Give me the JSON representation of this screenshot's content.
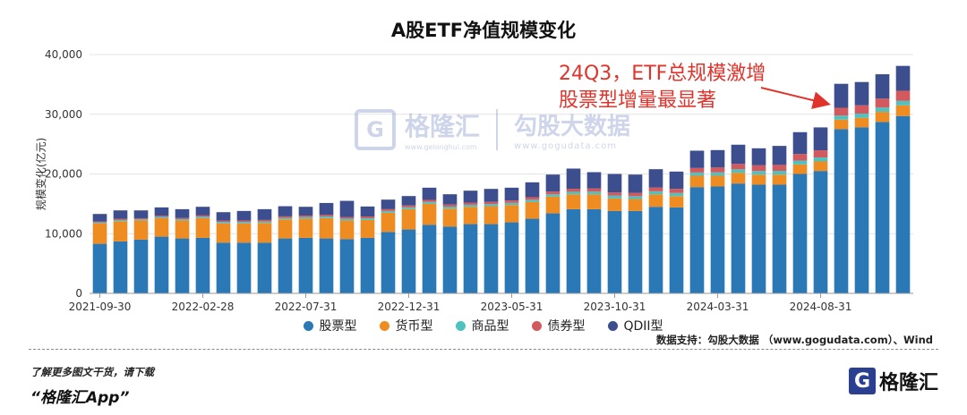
{
  "title": "A股ETF净值规模变化",
  "chart_data": {
    "type": "bar",
    "stacked": true,
    "title": "A股ETF净值规模变化",
    "ylabel": "规模变化(亿元)",
    "xlabel": "",
    "ylim": [
      0,
      40000
    ],
    "yticks": [
      "0",
      "10,000",
      "20,000",
      "30,000",
      "40,000"
    ],
    "grid": true,
    "legend_position": "bottom",
    "x_tick_labels": [
      "2021-09-30",
      "2022-02-28",
      "2022-07-31",
      "2022-12-31",
      "2023-05-31",
      "2023-10-31",
      "2024-03-31",
      "2024-08-31"
    ],
    "categories": [
      "2021-09-30",
      "2021-10-31",
      "2021-11-30",
      "2021-12-31",
      "2022-01-31",
      "2022-02-28",
      "2022-03-31",
      "2022-04-30",
      "2022-05-31",
      "2022-06-30",
      "2022-07-31",
      "2022-08-31",
      "2022-09-30",
      "2022-10-31",
      "2022-11-30",
      "2022-12-31",
      "2023-01-31",
      "2023-02-28",
      "2023-03-31",
      "2023-04-30",
      "2023-05-31",
      "2023-06-30",
      "2023-07-31",
      "2023-08-31",
      "2023-09-30",
      "2023-10-31",
      "2023-11-30",
      "2023-12-31",
      "2024-01-31",
      "2024-02-29",
      "2024-03-31",
      "2024-04-30",
      "2024-05-31",
      "2024-06-30",
      "2024-07-31",
      "2024-08-31",
      "2024-09-30",
      "2024-10-31",
      "2024-11-30",
      "2024-12-31"
    ],
    "series": [
      {
        "name": "股票型",
        "color": "#2a78b5",
        "values": [
          8300,
          8700,
          9000,
          9500,
          9200,
          9300,
          8500,
          8500,
          8500,
          9200,
          9300,
          9200,
          9100,
          9300,
          10300,
          10700,
          11500,
          11200,
          11600,
          11600,
          11900,
          12500,
          13400,
          14100,
          14100,
          13800,
          13800,
          14500,
          14400,
          17800,
          17900,
          18400,
          18200,
          18200,
          20000,
          20500,
          27500,
          27800,
          28700,
          29700
        ]
      },
      {
        "name": "货币型",
        "color": "#ef8c21",
        "values": [
          3400,
          3400,
          3200,
          3100,
          3000,
          3300,
          3200,
          3200,
          3300,
          3200,
          3200,
          3400,
          3100,
          3000,
          3200,
          3400,
          3500,
          3000,
          2900,
          3000,
          2900,
          2800,
          2800,
          2500,
          2500,
          2100,
          2000,
          2100,
          1900,
          1900,
          1800,
          1800,
          1700,
          1700,
          1600,
          1600,
          1600,
          1600,
          1700,
          1800
        ]
      },
      {
        "name": "商品型",
        "color": "#4fc2c0",
        "values": [
          180,
          190,
          200,
          210,
          220,
          230,
          240,
          240,
          250,
          250,
          260,
          270,
          280,
          290,
          300,
          310,
          320,
          330,
          340,
          350,
          360,
          380,
          400,
          420,
          440,
          460,
          480,
          500,
          520,
          540,
          560,
          580,
          600,
          620,
          640,
          660,
          680,
          700,
          720,
          740
        ]
      },
      {
        "name": "债券型",
        "color": "#d25a5e",
        "values": [
          170,
          180,
          190,
          200,
          210,
          220,
          230,
          240,
          250,
          250,
          260,
          270,
          280,
          290,
          300,
          320,
          340,
          350,
          360,
          380,
          400,
          430,
          460,
          500,
          520,
          540,
          560,
          620,
          680,
          760,
          820,
          900,
          950,
          1000,
          1100,
          1200,
          1300,
          1400,
          1500,
          1700
        ]
      },
      {
        "name": "QDII型",
        "color": "#3c4e8d",
        "values": [
          1250,
          1430,
          1310,
          1390,
          1470,
          1450,
          1430,
          1620,
          1800,
          1700,
          1480,
          2000,
          2740,
          1670,
          1600,
          1570,
          2040,
          1720,
          2000,
          2170,
          2140,
          2490,
          2840,
          3380,
          2740,
          3100,
          3060,
          3080,
          2900,
          2900,
          2920,
          3220,
          2850,
          3180,
          3660,
          3840,
          4020,
          3900,
          4080,
          4160
        ]
      }
    ]
  },
  "annotation": {
    "line1": "24Q3，ETF总规模激增",
    "line2": "股票型增量最显著",
    "color": "#e0332b"
  },
  "watermark": {
    "name": "格隆汇",
    "sub": "www.gelonghui.com",
    "name2": "勾股大数据",
    "sub2": "www.gogudata.com"
  },
  "source": "数据支持：勾股大数据 （www.gogudata.com）、Wind",
  "footer": {
    "line1": "了解更多图文干货，请下载",
    "line2": "“格隆汇App”",
    "logo_text": "格隆汇",
    "logo_letter": "G"
  }
}
